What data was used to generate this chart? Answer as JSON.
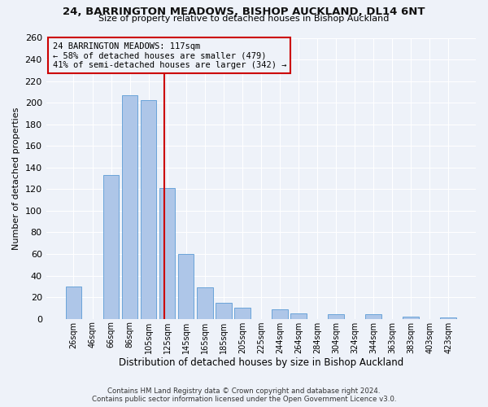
{
  "title": "24, BARRINGTON MEADOWS, BISHOP AUCKLAND, DL14 6NT",
  "subtitle": "Size of property relative to detached houses in Bishop Auckland",
  "xlabel": "Distribution of detached houses by size in Bishop Auckland",
  "ylabel": "Number of detached properties",
  "bar_labels": [
    "26sqm",
    "46sqm",
    "66sqm",
    "86sqm",
    "105sqm",
    "125sqm",
    "145sqm",
    "165sqm",
    "185sqm",
    "205sqm",
    "225sqm",
    "244sqm",
    "264sqm",
    "284sqm",
    "304sqm",
    "324sqm",
    "344sqm",
    "363sqm",
    "383sqm",
    "403sqm",
    "423sqm"
  ],
  "bar_values": [
    30,
    0,
    133,
    207,
    202,
    121,
    60,
    29,
    15,
    10,
    0,
    9,
    5,
    0,
    4,
    0,
    4,
    0,
    2,
    0,
    1
  ],
  "bar_color": "#aec6e8",
  "bar_edge_color": "#5b9bd5",
  "vline_color": "#cc0000",
  "ylim": [
    0,
    260
  ],
  "yticks": [
    0,
    20,
    40,
    60,
    80,
    100,
    120,
    140,
    160,
    180,
    200,
    220,
    240,
    260
  ],
  "annotation_title": "24 BARRINGTON MEADOWS: 117sqm",
  "annotation_line1": "← 58% of detached houses are smaller (479)",
  "annotation_line2": "41% of semi-detached houses are larger (342) →",
  "annotation_box_color": "#cc0000",
  "footnote1": "Contains HM Land Registry data © Crown copyright and database right 2024.",
  "footnote2": "Contains public sector information licensed under the Open Government Licence v3.0.",
  "bg_color": "#eef2f9",
  "grid_color": "#ffffff"
}
